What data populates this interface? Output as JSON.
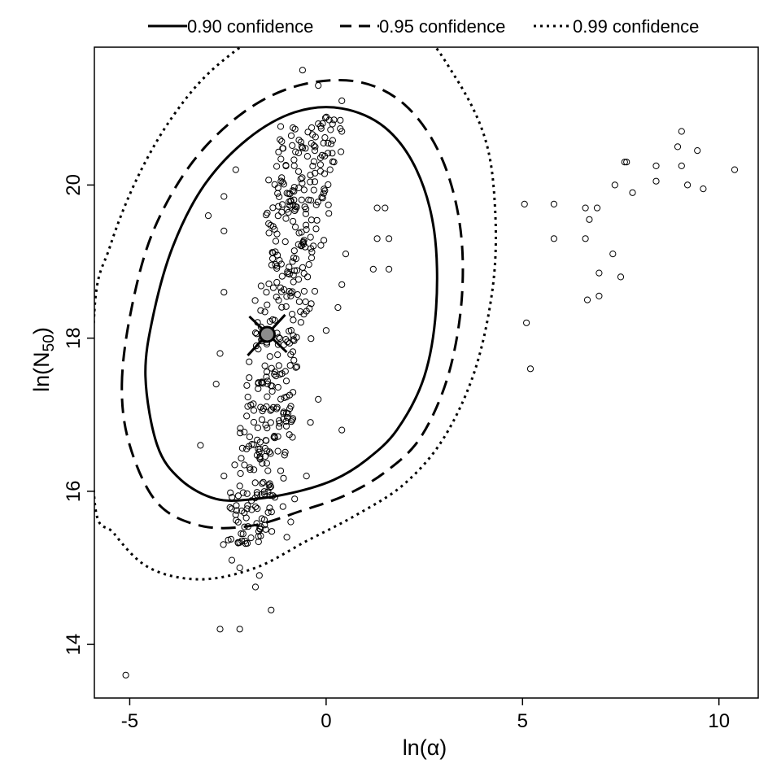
{
  "chart_data": {
    "type": "scatter",
    "xlabel": "ln(α)",
    "ylabel_main": "ln(N",
    "ylabel_sub": "50",
    "ylabel_close": ")",
    "xlim": [
      -5.9,
      11.0
    ],
    "ylim": [
      13.3,
      21.8
    ],
    "x_ticks": [
      -5,
      0,
      5,
      10
    ],
    "x_tick_labels": [
      "-5",
      "0",
      "5",
      "10"
    ],
    "y_ticks": [
      14,
      16,
      18,
      20
    ],
    "y_tick_labels": [
      "14",
      "16",
      "18",
      "20"
    ],
    "legend_position": "top",
    "legend": [
      {
        "label": "0.90 confidence",
        "style": "solid"
      },
      {
        "label": "0.95 confidence",
        "style": "dashed"
      },
      {
        "label": "0.99 confidence",
        "style": "dotted"
      }
    ],
    "estimate": {
      "x": -1.5,
      "y": 18.05
    },
    "ellipses": [
      {
        "name": "0.90 confidence",
        "style": "solid",
        "points": [
          [
            -4.6,
            17.5
          ],
          [
            -4.4,
            18.3
          ],
          [
            -3.9,
            19.2
          ],
          [
            -3.1,
            20.0
          ],
          [
            -2.0,
            20.6
          ],
          [
            -0.8,
            20.95
          ],
          [
            0.4,
            21.0
          ],
          [
            1.5,
            20.75
          ],
          [
            2.3,
            20.2
          ],
          [
            2.75,
            19.4
          ],
          [
            2.8,
            18.4
          ],
          [
            2.5,
            17.5
          ],
          [
            1.8,
            16.8
          ],
          [
            1.0,
            16.4
          ],
          [
            0.2,
            16.15
          ],
          [
            -0.7,
            16.0
          ],
          [
            -1.8,
            15.9
          ],
          [
            -2.8,
            15.9
          ],
          [
            -3.7,
            16.15
          ],
          [
            -4.3,
            16.6
          ]
        ]
      },
      {
        "name": "0.95 confidence",
        "style": "dashed",
        "points": [
          [
            -5.2,
            17.4
          ],
          [
            -4.95,
            18.4
          ],
          [
            -4.4,
            19.4
          ],
          [
            -3.4,
            20.3
          ],
          [
            -2.1,
            20.95
          ],
          [
            -0.7,
            21.3
          ],
          [
            0.8,
            21.35
          ],
          [
            2.0,
            21.05
          ],
          [
            2.9,
            20.4
          ],
          [
            3.4,
            19.5
          ],
          [
            3.45,
            18.5
          ],
          [
            3.1,
            17.5
          ],
          [
            2.4,
            16.7
          ],
          [
            1.5,
            16.25
          ],
          [
            0.5,
            15.95
          ],
          [
            -0.6,
            15.75
          ],
          [
            -1.9,
            15.55
          ],
          [
            -3.2,
            15.55
          ],
          [
            -4.3,
            15.85
          ],
          [
            -5.0,
            16.6
          ]
        ]
      },
      {
        "name": "0.99 confidence",
        "style": "dotted",
        "points": [
          [
            -5.9,
            18.35
          ],
          [
            -5.5,
            19.2
          ],
          [
            -4.8,
            20.1
          ],
          [
            -3.9,
            20.9
          ],
          [
            -2.8,
            21.55
          ],
          [
            -1.2,
            22.1
          ],
          [
            0.5,
            22.3
          ],
          [
            2.2,
            22.1
          ],
          [
            3.3,
            21.4
          ],
          [
            4.05,
            20.6
          ],
          [
            4.3,
            19.7
          ],
          [
            4.25,
            18.7
          ],
          [
            3.8,
            17.6
          ],
          [
            3.0,
            16.7
          ],
          [
            2.0,
            16.1
          ],
          [
            0.8,
            15.7
          ],
          [
            -0.5,
            15.35
          ],
          [
            -1.8,
            15.0
          ],
          [
            -3.2,
            14.85
          ],
          [
            -4.5,
            15.0
          ],
          [
            -5.4,
            15.45
          ],
          [
            -5.9,
            15.9
          ]
        ]
      }
    ],
    "outliers": [
      [
        -5.1,
        13.6
      ],
      [
        -2.7,
        14.2
      ],
      [
        -2.2,
        14.2
      ],
      [
        -1.4,
        14.45
      ],
      [
        -1.8,
        14.75
      ],
      [
        -1.7,
        14.9
      ],
      [
        -2.4,
        15.1
      ],
      [
        -2.2,
        15.0
      ],
      [
        -1.0,
        15.4
      ],
      [
        -0.9,
        15.6
      ],
      [
        -1.1,
        15.8
      ],
      [
        -0.8,
        15.9
      ],
      [
        -0.5,
        16.2
      ],
      [
        -0.4,
        16.9
      ],
      [
        0.4,
        16.8
      ],
      [
        -0.2,
        17.2
      ],
      [
        0.0,
        18.1
      ],
      [
        0.3,
        18.4
      ],
      [
        0.4,
        18.7
      ],
      [
        0.5,
        19.1
      ],
      [
        1.2,
        18.9
      ],
      [
        1.3,
        19.3
      ],
      [
        1.6,
        19.3
      ],
      [
        1.6,
        18.9
      ],
      [
        1.3,
        19.7
      ],
      [
        1.5,
        19.7
      ],
      [
        0.2,
        20.3
      ],
      [
        0.1,
        20.2
      ],
      [
        0.4,
        20.7
      ],
      [
        0.4,
        21.1
      ],
      [
        -0.2,
        21.3
      ],
      [
        -0.6,
        21.5
      ],
      [
        -0.2,
        20.8
      ],
      [
        -3.0,
        19.6
      ],
      [
        -2.6,
        19.4
      ],
      [
        -2.6,
        19.85
      ],
      [
        -2.3,
        20.2
      ],
      [
        -2.6,
        18.6
      ],
      [
        -3.2,
        16.6
      ],
      [
        -2.7,
        17.8
      ],
      [
        -2.8,
        17.4
      ],
      [
        -2.6,
        16.2
      ],
      [
        5.05,
        19.75
      ],
      [
        5.1,
        18.2
      ],
      [
        5.2,
        17.6
      ],
      [
        5.8,
        19.75
      ],
      [
        5.8,
        19.3
      ],
      [
        6.6,
        19.3
      ],
      [
        6.6,
        19.7
      ],
      [
        6.7,
        19.55
      ],
      [
        6.9,
        19.7
      ],
      [
        6.95,
        18.85
      ],
      [
        6.95,
        18.55
      ],
      [
        6.65,
        18.5
      ],
      [
        7.3,
        19.1
      ],
      [
        7.5,
        18.8
      ],
      [
        7.35,
        20.0
      ],
      [
        7.6,
        20.3
      ],
      [
        7.65,
        20.3
      ],
      [
        7.8,
        19.9
      ],
      [
        8.4,
        20.25
      ],
      [
        8.4,
        20.05
      ],
      [
        8.95,
        20.5
      ],
      [
        9.05,
        20.25
      ],
      [
        9.05,
        20.7
      ],
      [
        9.2,
        20.0
      ],
      [
        9.45,
        20.45
      ],
      [
        9.6,
        19.95
      ],
      [
        10.4,
        20.2
      ]
    ]
  }
}
